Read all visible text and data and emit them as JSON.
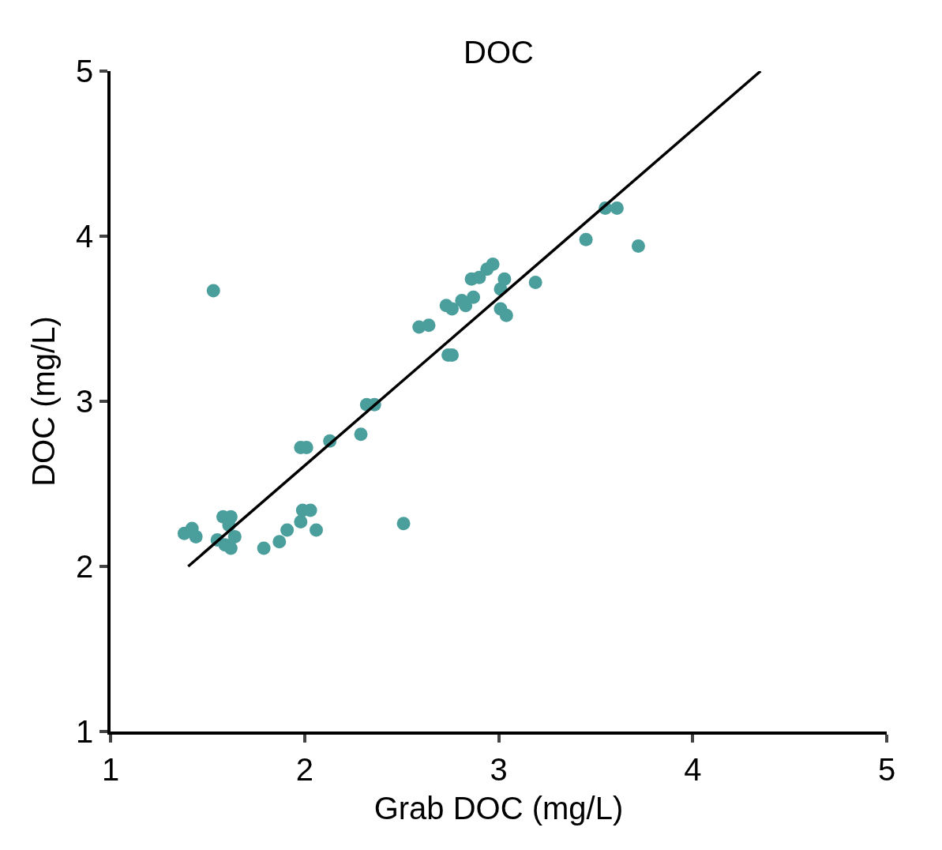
{
  "chart_data": {
    "type": "scatter",
    "title": "DOC",
    "xlabel": "Grab DOC (mg/L)",
    "ylabel": "DOC (mg/L)",
    "xlim": [
      1,
      5
    ],
    "ylim": [
      1,
      5
    ],
    "xticks": [
      1,
      2,
      3,
      4,
      5
    ],
    "yticks": [
      1,
      2,
      3,
      4,
      5
    ],
    "series": [
      {
        "marker": "circle",
        "color": "#4a9e9c",
        "x": [
          1.38,
          1.42,
          1.44,
          1.53,
          1.55,
          1.58,
          1.59,
          1.62,
          1.61,
          1.64,
          1.62,
          1.79,
          1.87,
          1.91,
          1.98,
          1.99,
          2.03,
          2.06,
          1.98,
          2.01,
          2.13,
          2.29,
          2.32,
          2.36,
          2.51,
          2.59,
          2.64,
          2.74,
          2.76,
          2.73,
          2.76,
          2.81,
          2.83,
          2.87,
          2.86,
          2.9,
          2.94,
          2.97,
          3.01,
          3.03,
          3.01,
          3.04,
          3.19,
          3.45,
          3.55,
          3.61,
          3.72
        ],
        "values": [
          2.2,
          2.23,
          2.18,
          3.67,
          2.16,
          2.3,
          2.13,
          2.3,
          2.25,
          2.18,
          2.11,
          2.11,
          2.15,
          2.22,
          2.27,
          2.34,
          2.34,
          2.22,
          2.72,
          2.72,
          2.76,
          2.8,
          2.98,
          2.98,
          2.26,
          3.45,
          3.46,
          3.28,
          3.28,
          3.58,
          3.56,
          3.61,
          3.58,
          3.63,
          3.74,
          3.75,
          3.8,
          3.83,
          3.68,
          3.74,
          3.56,
          3.52,
          3.72,
          3.98,
          4.17,
          4.17,
          3.94
        ]
      },
      {
        "type": "line",
        "color": "#000000",
        "line_style": "solid",
        "x": [
          1.4,
          4.35
        ],
        "values": [
          2.0,
          5.0
        ]
      }
    ]
  }
}
